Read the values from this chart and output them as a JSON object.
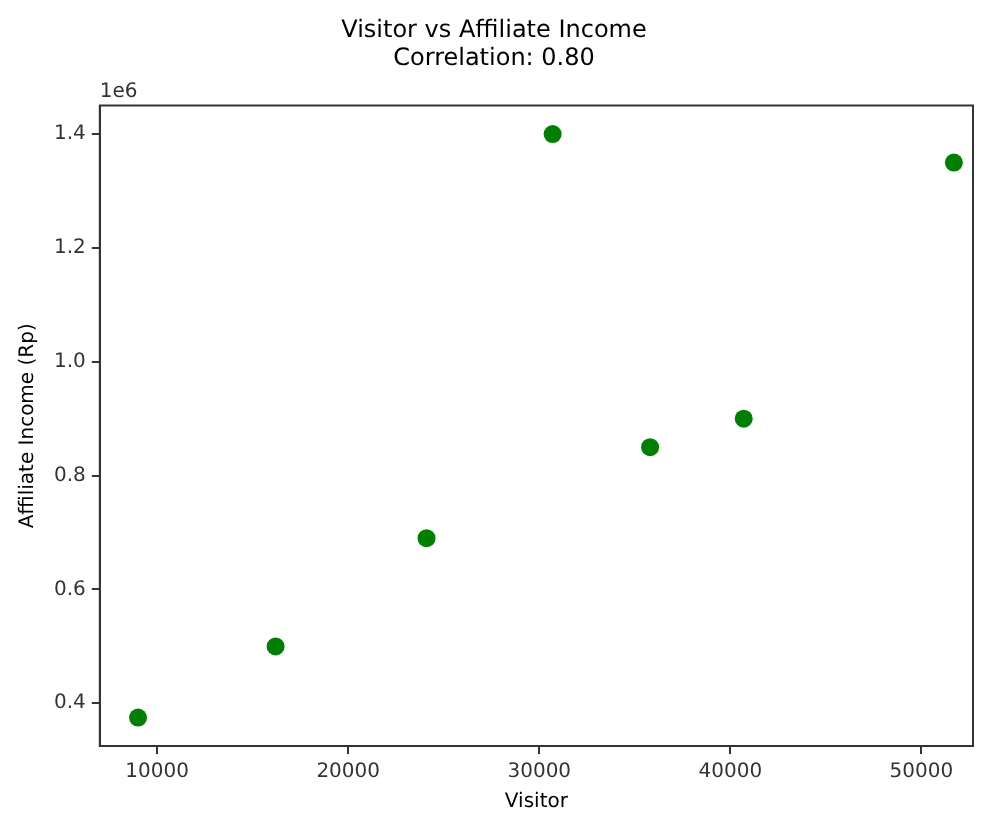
{
  "chart_data": {
    "type": "scatter",
    "title": "Visitor vs Affiliate Income",
    "subtitle": "Correlation: 0.80",
    "xlabel": "Visitor",
    "ylabel": "Affiliate Income (Rp)",
    "annotations": [
      "1e6"
    ],
    "x": [
      9000,
      16200,
      24100,
      30700,
      35800,
      40700,
      51700
    ],
    "series": [
      {
        "color": "#008000",
        "values": [
          0.375,
          0.5,
          0.69,
          1.4,
          0.85,
          0.9,
          1.35
        ]
      }
    ],
    "xlim": [
      7000,
      52700
    ],
    "xticks": [
      10000,
      20000,
      30000,
      40000,
      50000
    ],
    "ylim": [
      0.325,
      1.45
    ],
    "yticks": [
      0.4,
      0.6,
      0.8,
      {
        "value": 1,
        "label": "1.0"
      },
      1.2,
      1.4
    ],
    "grid": false,
    "legend": false,
    "marker": "circle"
  }
}
